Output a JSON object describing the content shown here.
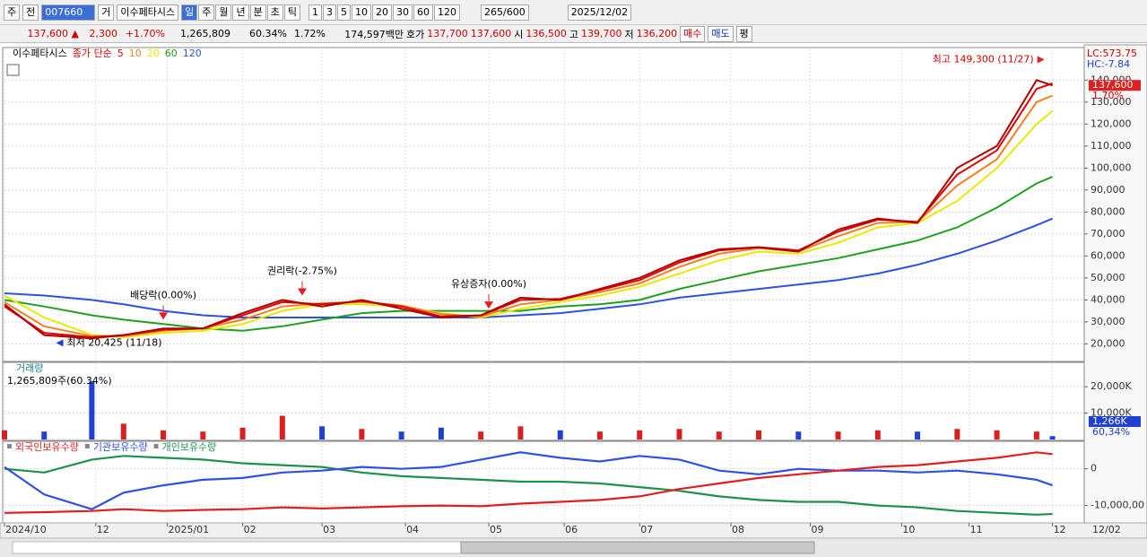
{
  "toolbar": {
    "period_buttons": [
      "주",
      "전"
    ],
    "code": "007660",
    "name_prefix": "거",
    "name": "이수페타시스",
    "intervals": [
      "일",
      "주",
      "월",
      "년",
      "분",
      "초",
      "틱"
    ],
    "numbers": [
      "1",
      "3",
      "5",
      "10",
      "20",
      "30",
      "60",
      "120"
    ],
    "count": "265",
    "count_max": "/600",
    "date": "2025/12/02"
  },
  "quote_bar": {
    "price": "137,600 ▲",
    "change": "2,300",
    "change_pct": "+1.70%",
    "volume": "1,265,809",
    "volume_ratio": "60.34%",
    "turnover": "1.72%",
    "amount": "174,597백만",
    "ask_label": "호가",
    "ask": "137,700",
    "bid": "137,600",
    "open_label": "시",
    "open": "136,500",
    "high_label": "고",
    "high": "139,700",
    "low_label": "저",
    "low": "136,200",
    "buy": "매수",
    "sell": "매도",
    "avg": "평"
  },
  "chart_data": [
    {
      "type": "line",
      "subtitle": "종가 단순",
      "x": [
        0,
        10,
        22,
        30,
        40,
        50,
        60,
        70,
        80,
        90,
        100,
        110,
        120,
        130,
        140,
        150,
        160,
        170,
        180,
        190,
        200,
        210,
        220,
        230,
        240,
        250,
        260,
        264
      ],
      "xlim": [
        0,
        265
      ],
      "ylim": [
        12000,
        154000
      ],
      "yticks": [
        {
          "value": 20000,
          "label": "20,000"
        },
        {
          "value": 30000,
          "label": "30,000"
        },
        {
          "value": 40000,
          "label": "40,000"
        },
        {
          "value": 50000,
          "label": "50,000"
        },
        {
          "value": 60000,
          "label": "60,000"
        },
        {
          "value": 70000,
          "label": "70,000"
        },
        {
          "value": 80000,
          "label": "80,000"
        },
        {
          "value": 90000,
          "label": "90,000"
        },
        {
          "value": 100000,
          "label": "100,000"
        },
        {
          "value": 110000,
          "label": "110,000"
        },
        {
          "value": 120000,
          "label": "120,000"
        },
        {
          "value": 130000,
          "label": "130,000"
        },
        {
          "value": 140000,
          "label": "140,000"
        }
      ],
      "grid": true,
      "series": [
        {
          "name": "이수페타시스",
          "color": "#b00000",
          "values": [
            38000,
            24000,
            22500,
            24000,
            27000,
            27000,
            34000,
            40000,
            37000,
            40000,
            36000,
            32000,
            33000,
            41000,
            40000,
            45000,
            50000,
            58000,
            63000,
            64000,
            62000,
            72000,
            77000,
            75000,
            100000,
            110000,
            140000,
            137600
          ]
        },
        {
          "name": "5",
          "color": "#e00000",
          "values": [
            37000,
            25000,
            23000,
            24000,
            26500,
            27000,
            33000,
            39000,
            38000,
            39500,
            37000,
            32500,
            33000,
            40000,
            40500,
            44500,
            49000,
            57000,
            62500,
            64000,
            62500,
            71000,
            76500,
            75500,
            97000,
            108000,
            136000,
            138500
          ]
        },
        {
          "name": "10",
          "color": "#f08020",
          "values": [
            39000,
            28000,
            23500,
            23500,
            26000,
            27000,
            31000,
            37000,
            38500,
            39000,
            37500,
            33500,
            32500,
            38000,
            40000,
            43500,
            47500,
            55000,
            61000,
            63500,
            62000,
            69000,
            75000,
            75500,
            92000,
            104000,
            130000,
            133000
          ]
        },
        {
          "name": "20",
          "color": "#e8e800",
          "values": [
            42000,
            32000,
            24000,
            23000,
            25000,
            26000,
            29000,
            35000,
            38000,
            38000,
            37000,
            34000,
            32000,
            36000,
            39000,
            42000,
            46000,
            52000,
            58000,
            62000,
            61000,
            66000,
            73000,
            75000,
            85000,
            100000,
            120000,
            126000
          ]
        },
        {
          "name": "60",
          "color": "#20a020",
          "values": [
            40000,
            37000,
            33000,
            31000,
            29000,
            27000,
            26000,
            28000,
            31000,
            34000,
            35000,
            35000,
            35000,
            35000,
            37000,
            38000,
            40000,
            45000,
            49000,
            53000,
            56000,
            59000,
            63000,
            67000,
            73000,
            82000,
            93000,
            96000
          ]
        },
        {
          "name": "120",
          "color": "#3050e0",
          "values": [
            43000,
            42000,
            40000,
            38000,
            35000,
            33000,
            32000,
            32000,
            32000,
            32000,
            32000,
            32000,
            32000,
            33000,
            34000,
            36000,
            38000,
            41000,
            43000,
            45000,
            47000,
            49000,
            52000,
            56000,
            61000,
            67000,
            74000,
            77000
          ]
        }
      ],
      "annotations": [
        {
          "text": "최고 149,300 (11/27)",
          "kind": "high",
          "x": 262,
          "value": 149300
        },
        {
          "text": "최저 20,425 (11/18)",
          "kind": "low",
          "x": 13,
          "value": 20425
        },
        {
          "text": "배당락(0.00%)",
          "kind": "event",
          "x": 40,
          "value": 31000
        },
        {
          "text": "권리락(-2.75%)",
          "kind": "event",
          "x": 75,
          "value": 42000
        },
        {
          "text": "유상증자(0.00%)",
          "kind": "event",
          "x": 122,
          "value": 36000
        }
      ],
      "scale_labels": [
        "LC:573.75",
        "HC:-7.84"
      ],
      "last_price_label": "137,600",
      "last_change_label": "1.70%"
    },
    {
      "type": "bar",
      "title": "거래량",
      "subtitle": "1,265,809주(60.34%)",
      "x": [
        0,
        10,
        22,
        30,
        40,
        50,
        60,
        70,
        80,
        90,
        100,
        110,
        120,
        130,
        140,
        150,
        160,
        170,
        180,
        190,
        200,
        210,
        220,
        230,
        240,
        250,
        260,
        264
      ],
      "xlim": [
        0,
        265
      ],
      "ylim": [
        0,
        28900
      ],
      "yticks": [
        {
          "value": 10000,
          "label": "10,000K"
        },
        {
          "value": 20000,
          "label": "20,000K"
        }
      ],
      "up_color": "#d82020",
      "down_color": "#2040d0",
      "values": [
        3500,
        3000,
        22000,
        6000,
        3500,
        3000,
        4500,
        9000,
        5000,
        4000,
        3000,
        4500,
        3000,
        5000,
        3500,
        3000,
        3500,
        4000,
        3000,
        3500,
        3000,
        3000,
        3500,
        3000,
        4000,
        3500,
        3000,
        1266
      ],
      "last_label": "1,266K",
      "ratio_label": "60,34%"
    },
    {
      "type": "line",
      "x": [
        0,
        10,
        22,
        30,
        40,
        50,
        60,
        70,
        80,
        90,
        100,
        110,
        120,
        130,
        140,
        150,
        160,
        170,
        180,
        190,
        200,
        210,
        220,
        230,
        240,
        250,
        260,
        264
      ],
      "xlim": [
        0,
        265
      ],
      "ylim": [
        -14500000,
        7250000
      ],
      "yticks": [
        0,
        {
          "value": -10000000,
          "label": "-10,000,00"
        }
      ],
      "xticks": [
        {
          "value": 0,
          "label": "2024/10"
        },
        {
          "value": 23,
          "label": "12"
        },
        {
          "value": 41,
          "label": "2025/01"
        },
        {
          "value": 60,
          "label": "02"
        },
        {
          "value": 80,
          "label": "03"
        },
        {
          "value": 101,
          "label": "04"
        },
        {
          "value": 122,
          "label": "05"
        },
        {
          "value": 141,
          "label": "06"
        },
        {
          "value": 160,
          "label": "07"
        },
        {
          "value": 183,
          "label": "08"
        },
        {
          "value": 203,
          "label": "09"
        },
        {
          "value": 226,
          "label": "10"
        },
        {
          "value": 243,
          "label": "11"
        },
        {
          "value": 264,
          "label": "12"
        }
      ],
      "end_label": "12/02",
      "series": [
        {
          "name": "외국인보유수량",
          "color": "#e02020",
          "values": [
            -12000000,
            -11800000,
            -11500000,
            -11000000,
            -11500000,
            -11200000,
            -11000000,
            -10500000,
            -10800000,
            -10500000,
            -10200000,
            -10000000,
            -10200000,
            -9500000,
            -9000000,
            -8500000,
            -7500000,
            -5500000,
            -4000000,
            -2500000,
            -1500000,
            -500000,
            500000,
            1000000,
            2000000,
            3000000,
            4500000,
            4000000
          ]
        },
        {
          "name": "기관보유수량",
          "color": "#3050e0",
          "values": [
            500000,
            -7000000,
            -11000000,
            -6500000,
            -4500000,
            -3000000,
            -2500000,
            -1000000,
            -500000,
            500000,
            0,
            500000,
            2500000,
            4500000,
            3000000,
            2000000,
            3500000,
            2500000,
            -500000,
            -1500000,
            0,
            -500000,
            -500000,
            -1000000,
            -500000,
            -1500000,
            -3000000,
            -4500000
          ]
        },
        {
          "name": "개인보유수량",
          "color": "#209050",
          "values": [
            0,
            -1000000,
            2500000,
            3500000,
            3000000,
            2500000,
            1500000,
            1000000,
            500000,
            -1000000,
            -2000000,
            -2500000,
            -3000000,
            -3500000,
            -3500000,
            -4000000,
            -5000000,
            -6000000,
            -7500000,
            -8500000,
            -9000000,
            -9000000,
            -10000000,
            -10500000,
            -11500000,
            -12000000,
            -12500000,
            -12300000
          ]
        }
      ]
    }
  ]
}
